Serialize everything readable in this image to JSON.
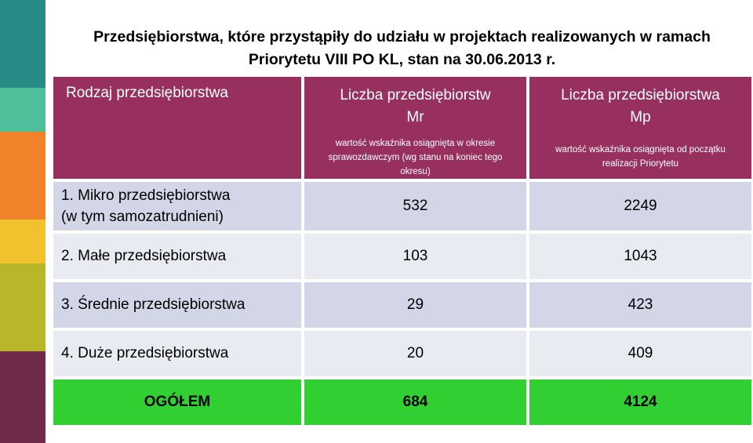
{
  "title": {
    "line1": "Przedsiębiorstwa, które przystąpiły do udziału w projektach realizowanych w ramach",
    "line2": "Priorytetu VIII PO KL, stan na 30.06.2013 r."
  },
  "colors": {
    "header_bg": "#97305f",
    "row_dark": "#d3d6e6",
    "row_light": "#e9ebf3",
    "total_bg": "#31cf31",
    "stripes": [
      "#2a8a86",
      "#4ebf9a",
      "#f0832a",
      "#f2c12e",
      "#b8b72a",
      "#6e2a4a"
    ]
  },
  "table": {
    "headers": {
      "col1": "Rodzaj przedsiębiorstwa",
      "col2_title": "Liczba przedsiębiorstw",
      "col2_code": "Mr",
      "col2_note": "wartość wskaźnika osiągnięta w okresie sprawozdawczym (wg stanu na koniec tego okresu)",
      "col3_title": "Liczba przedsiębiorstwa",
      "col3_code": "Mp",
      "col3_note": "wartość wskaźnika osiągnięta od początku realizacji Priorytetu"
    },
    "rows": [
      {
        "name_line1": "1. Mikro przedsiębiorstwa",
        "name_line2": "(w tym samozatrudnieni)",
        "mr": "532",
        "mp": "2249"
      },
      {
        "name": "2. Małe przedsiębiorstwa",
        "mr": "103",
        "mp": "1043"
      },
      {
        "name": "3. Średnie przedsiębiorstwa",
        "mr": "29",
        "mp": "423"
      },
      {
        "name": "4. Duże przedsiębiorstwa",
        "mr": "20",
        "mp": "409"
      }
    ],
    "total": {
      "name": "OGÓŁEM",
      "mr": "684",
      "mp": "4124"
    }
  }
}
